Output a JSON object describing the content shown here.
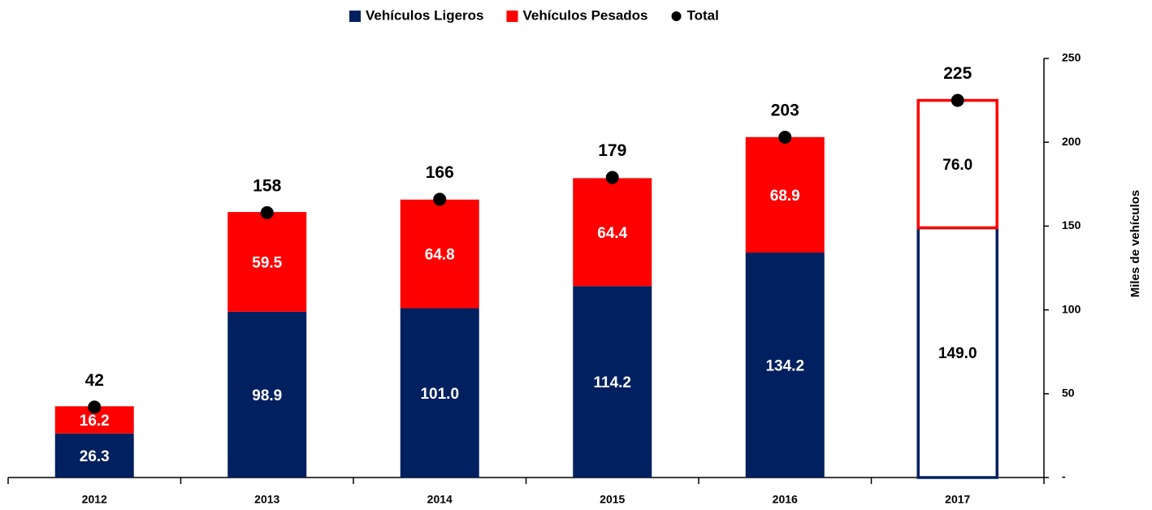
{
  "chart_data": {
    "type": "stacked-bar",
    "categories": [
      "2012",
      "2013",
      "2014",
      "2015",
      "2016",
      "2017"
    ],
    "series": [
      {
        "name": "Vehículos Ligeros",
        "color": "#002060",
        "values": [
          26.3,
          98.9,
          101.0,
          114.2,
          134.2,
          149.0
        ],
        "value_labels": [
          "26.3",
          "98.9",
          "101.0",
          "114.2",
          "134.2",
          "149.0"
        ]
      },
      {
        "name": "Vehículos Pesados",
        "color": "#ff0000",
        "values": [
          16.2,
          59.5,
          64.8,
          64.4,
          68.9,
          76.0
        ],
        "value_labels": [
          "16.2",
          "59.5",
          "64.8",
          "64.4",
          "68.9",
          "76.0"
        ]
      },
      {
        "name": "Total",
        "color": "#000000",
        "type": "scatter",
        "values": [
          42,
          158,
          166,
          179,
          203,
          225
        ]
      }
    ],
    "y_label": "Miles de vehículos",
    "ylim": [
      0,
      250
    ],
    "yticks": [
      {
        "value": 0,
        "label": "-"
      },
      50,
      100,
      150,
      200,
      250
    ],
    "y_axis_side": "right",
    "legend": "top",
    "outline_last": true
  }
}
